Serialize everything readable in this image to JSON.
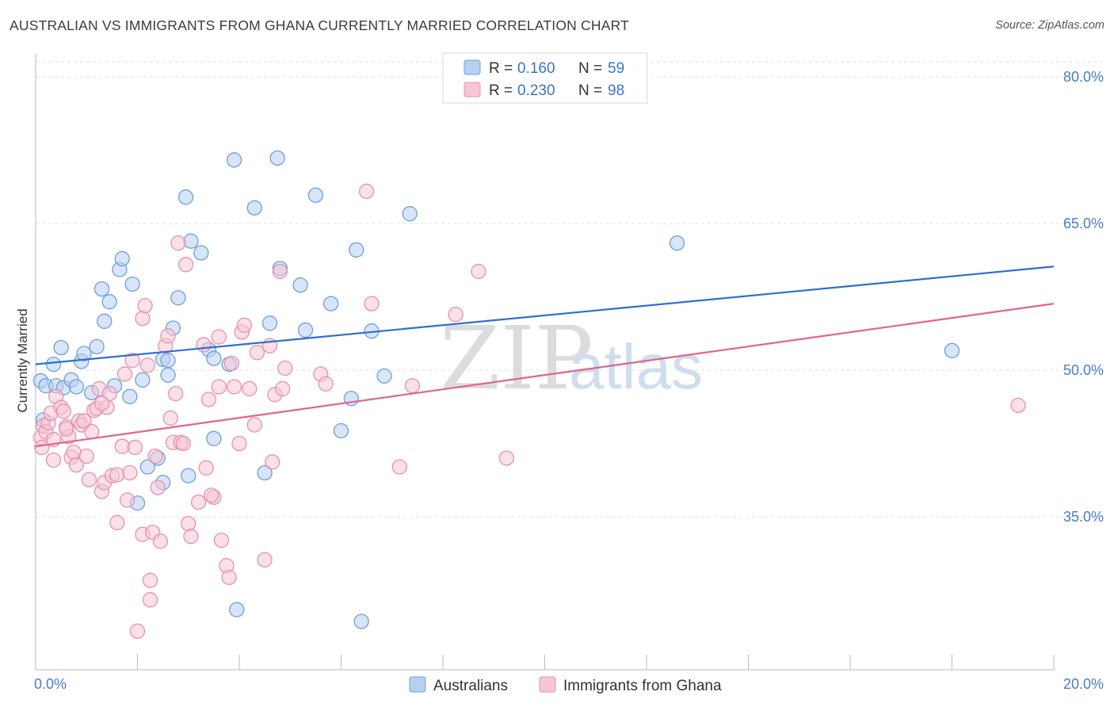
{
  "header": {
    "title": "AUSTRALIAN VS IMMIGRANTS FROM GHANA CURRENTLY MARRIED CORRELATION CHART",
    "source": "Source: ZipAtlas.com"
  },
  "colors": {
    "blue": "#6f9fd8",
    "blue_fill": "#b8d0f0",
    "blue_line": "#2f6fcf",
    "pink": "#e890ad",
    "pink_fill": "#f5c6d6",
    "pink_line": "#e0648f",
    "axis_text": "#4a7cc4"
  },
  "legend": {
    "r_label": "R =",
    "n_label": "N =",
    "items": [
      {
        "name": "Australians",
        "r": "0.160",
        "n": "59"
      },
      {
        "name": "Immigrants from Ghana",
        "r": "0.230",
        "n": "98"
      }
    ]
  },
  "watermark": {
    "zip": "ZIP",
    "atlas": "atlas"
  },
  "chart_data": {
    "type": "scatter",
    "title": "AUSTRALIAN VS IMMIGRANTS FROM GHANA CURRENTLY MARRIED CORRELATION CHART",
    "xlabel": "",
    "ylabel": "Currently Married",
    "xlim": [
      0,
      20
    ],
    "ylim": [
      20.5,
      82
    ],
    "x_tick_labels": [
      "0.0%",
      "20.0%"
    ],
    "y_ticks": [
      35,
      50,
      65,
      80
    ],
    "y_tick_labels": [
      "35.0%",
      "50.0%",
      "65.0%",
      "80.0%"
    ],
    "grid": true,
    "series": [
      {
        "name": "Australians",
        "r": 0.16,
        "n": 59,
        "trend": {
          "x": [
            0,
            20
          ],
          "y": [
            50.6,
            60.6
          ]
        },
        "points": [
          [
            0.1,
            48.9
          ],
          [
            0.15,
            44.9
          ],
          [
            0.2,
            48.4
          ],
          [
            0.35,
            50.6
          ],
          [
            0.4,
            48.4
          ],
          [
            0.5,
            52.3
          ],
          [
            0.55,
            48.2
          ],
          [
            0.7,
            49.0
          ],
          [
            0.8,
            48.3
          ],
          [
            0.9,
            50.9
          ],
          [
            0.95,
            51.7
          ],
          [
            1.1,
            47.7
          ],
          [
            1.2,
            52.4
          ],
          [
            1.3,
            58.3
          ],
          [
            1.35,
            55.0
          ],
          [
            1.45,
            57.0
          ],
          [
            1.55,
            48.4
          ],
          [
            1.65,
            60.3
          ],
          [
            1.7,
            61.4
          ],
          [
            1.85,
            47.3
          ],
          [
            1.9,
            58.8
          ],
          [
            2.0,
            36.4
          ],
          [
            2.1,
            49.0
          ],
          [
            2.2,
            40.1
          ],
          [
            2.4,
            41.0
          ],
          [
            2.5,
            51.1
          ],
          [
            2.5,
            38.5
          ],
          [
            2.6,
            51.0
          ],
          [
            2.6,
            49.5
          ],
          [
            2.7,
            54.3
          ],
          [
            2.8,
            57.4
          ],
          [
            2.95,
            67.7
          ],
          [
            3.0,
            39.2
          ],
          [
            3.05,
            63.2
          ],
          [
            3.25,
            62.0
          ],
          [
            3.4,
            52.1
          ],
          [
            3.5,
            51.2
          ],
          [
            3.5,
            43.0
          ],
          [
            3.8,
            50.6
          ],
          [
            3.9,
            71.5
          ],
          [
            3.95,
            25.5
          ],
          [
            4.3,
            66.6
          ],
          [
            4.5,
            39.5
          ],
          [
            4.6,
            54.8
          ],
          [
            4.75,
            71.7
          ],
          [
            4.8,
            60.4
          ],
          [
            5.2,
            58.7
          ],
          [
            5.3,
            54.1
          ],
          [
            5.5,
            67.9
          ],
          [
            5.8,
            56.8
          ],
          [
            6.0,
            43.8
          ],
          [
            6.2,
            47.1
          ],
          [
            6.3,
            62.3
          ],
          [
            6.4,
            24.3
          ],
          [
            6.6,
            54.0
          ],
          [
            6.85,
            49.4
          ],
          [
            7.35,
            66.0
          ],
          [
            12.6,
            63.0
          ],
          [
            18.0,
            52.0
          ]
        ]
      },
      {
        "name": "Immigrants from Ghana",
        "r": 0.23,
        "n": 98,
        "trend": {
          "x": [
            0,
            20
          ],
          "y": [
            42.2,
            56.8
          ]
        },
        "points": [
          [
            0.1,
            43.1
          ],
          [
            0.12,
            42.1
          ],
          [
            0.15,
            44.3
          ],
          [
            0.2,
            43.7
          ],
          [
            0.25,
            44.6
          ],
          [
            0.3,
            45.6
          ],
          [
            0.35,
            40.8
          ],
          [
            0.4,
            47.3
          ],
          [
            0.5,
            46.2
          ],
          [
            0.55,
            45.8
          ],
          [
            0.6,
            44.2
          ],
          [
            0.65,
            43.2
          ],
          [
            0.7,
            41.1
          ],
          [
            0.75,
            41.6
          ],
          [
            0.8,
            40.3
          ],
          [
            0.85,
            44.8
          ],
          [
            0.9,
            44.4
          ],
          [
            0.95,
            44.8
          ],
          [
            1.0,
            41.2
          ],
          [
            1.05,
            38.8
          ],
          [
            1.1,
            43.7
          ],
          [
            1.15,
            45.9
          ],
          [
            1.2,
            46.1
          ],
          [
            1.25,
            48.1
          ],
          [
            1.3,
            37.6
          ],
          [
            1.35,
            38.5
          ],
          [
            1.4,
            46.2
          ],
          [
            1.45,
            47.6
          ],
          [
            1.5,
            39.2
          ],
          [
            1.6,
            39.3
          ],
          [
            1.6,
            34.4
          ],
          [
            1.7,
            42.2
          ],
          [
            1.75,
            49.6
          ],
          [
            1.8,
            36.7
          ],
          [
            1.85,
            39.5
          ],
          [
            1.9,
            51.0
          ],
          [
            1.95,
            42.1
          ],
          [
            2.0,
            23.3
          ],
          [
            2.1,
            55.3
          ],
          [
            2.1,
            33.2
          ],
          [
            2.15,
            56.6
          ],
          [
            2.2,
            50.5
          ],
          [
            2.25,
            26.5
          ],
          [
            2.25,
            28.5
          ],
          [
            2.3,
            33.4
          ],
          [
            2.35,
            41.2
          ],
          [
            2.4,
            38.0
          ],
          [
            2.45,
            32.5
          ],
          [
            2.55,
            52.5
          ],
          [
            2.6,
            53.5
          ],
          [
            2.65,
            45.1
          ],
          [
            2.7,
            42.6
          ],
          [
            2.75,
            47.6
          ],
          [
            2.8,
            63.0
          ],
          [
            2.85,
            42.6
          ],
          [
            2.9,
            42.5
          ],
          [
            2.95,
            60.8
          ],
          [
            3.0,
            34.3
          ],
          [
            3.05,
            33.0
          ],
          [
            3.2,
            36.5
          ],
          [
            3.3,
            52.6
          ],
          [
            3.35,
            40.0
          ],
          [
            3.4,
            47.0
          ],
          [
            3.5,
            37.0
          ],
          [
            3.6,
            48.3
          ],
          [
            3.65,
            32.6
          ],
          [
            3.75,
            30.0
          ],
          [
            3.8,
            28.8
          ],
          [
            3.85,
            50.7
          ],
          [
            3.9,
            48.3
          ],
          [
            4.0,
            42.5
          ],
          [
            4.05,
            53.9
          ],
          [
            4.1,
            54.6
          ],
          [
            4.2,
            48.1
          ],
          [
            4.3,
            44.4
          ],
          [
            4.35,
            51.8
          ],
          [
            4.5,
            30.6
          ],
          [
            4.6,
            52.5
          ],
          [
            4.65,
            40.6
          ],
          [
            4.7,
            47.5
          ],
          [
            4.8,
            60.1
          ],
          [
            4.85,
            48.1
          ],
          [
            4.9,
            50.2
          ],
          [
            5.6,
            49.6
          ],
          [
            5.7,
            48.6
          ],
          [
            6.5,
            68.3
          ],
          [
            6.6,
            56.8
          ],
          [
            7.15,
            40.1
          ],
          [
            7.4,
            48.4
          ],
          [
            8.25,
            55.7
          ],
          [
            8.7,
            60.1
          ],
          [
            9.25,
            41.0
          ],
          [
            19.3,
            46.4
          ],
          [
            3.6,
            53.4
          ],
          [
            3.45,
            37.2
          ],
          [
            0.6,
            44.0
          ],
          [
            1.3,
            46.6
          ],
          [
            0.35,
            42.9
          ]
        ]
      }
    ]
  }
}
